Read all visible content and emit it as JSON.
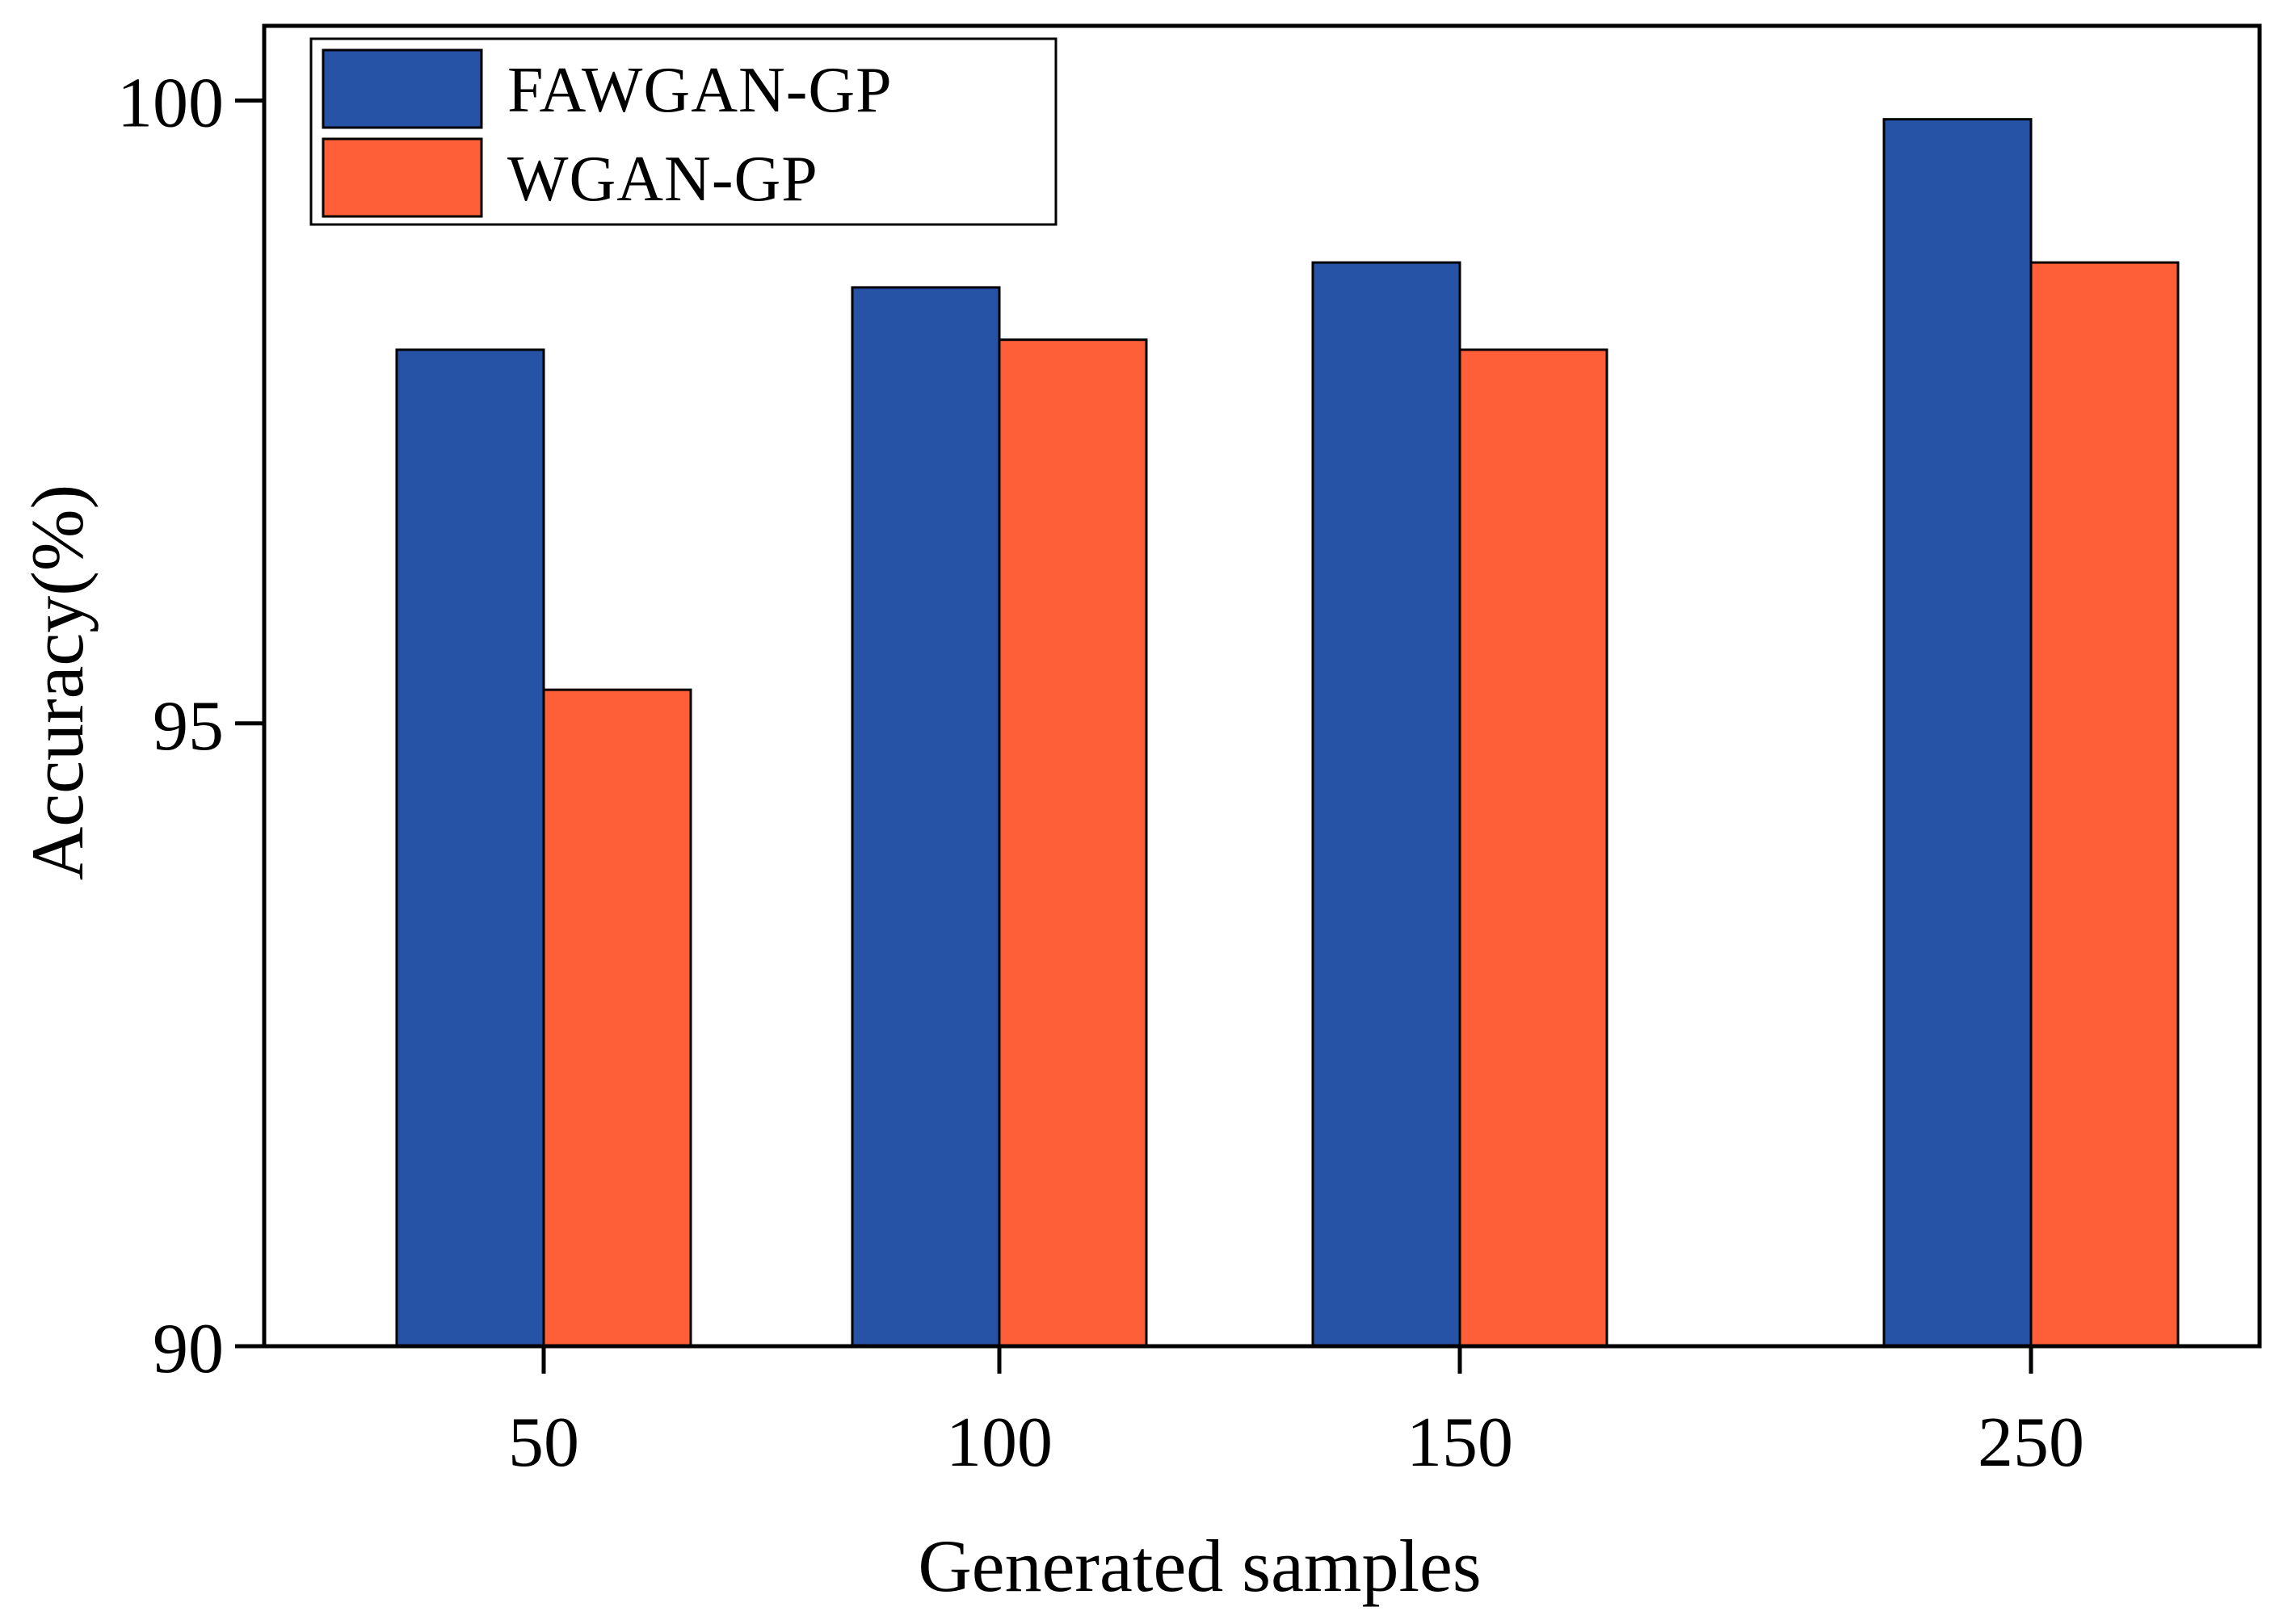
{
  "chart_data": {
    "type": "bar",
    "title": "",
    "xlabel": "Generated samples",
    "ylabel": "Accuracy(%)",
    "categories": [
      "50",
      "100",
      "150",
      "250"
    ],
    "ylim": [
      90,
      100.6
    ],
    "yticks": [
      "90",
      "95",
      "100"
    ],
    "ytick_values": [
      90,
      95,
      100
    ],
    "grid": false,
    "legend_position": "top-left",
    "series": [
      {
        "name": "FAWGAN-GP",
        "color": "#2753A6",
        "values": [
          98.0,
          98.5,
          98.7,
          99.85
        ]
      },
      {
        "name": "WGAN-GP",
        "color": "#FF5F38",
        "values": [
          95.27,
          98.08,
          98.0,
          98.7
        ]
      }
    ]
  }
}
